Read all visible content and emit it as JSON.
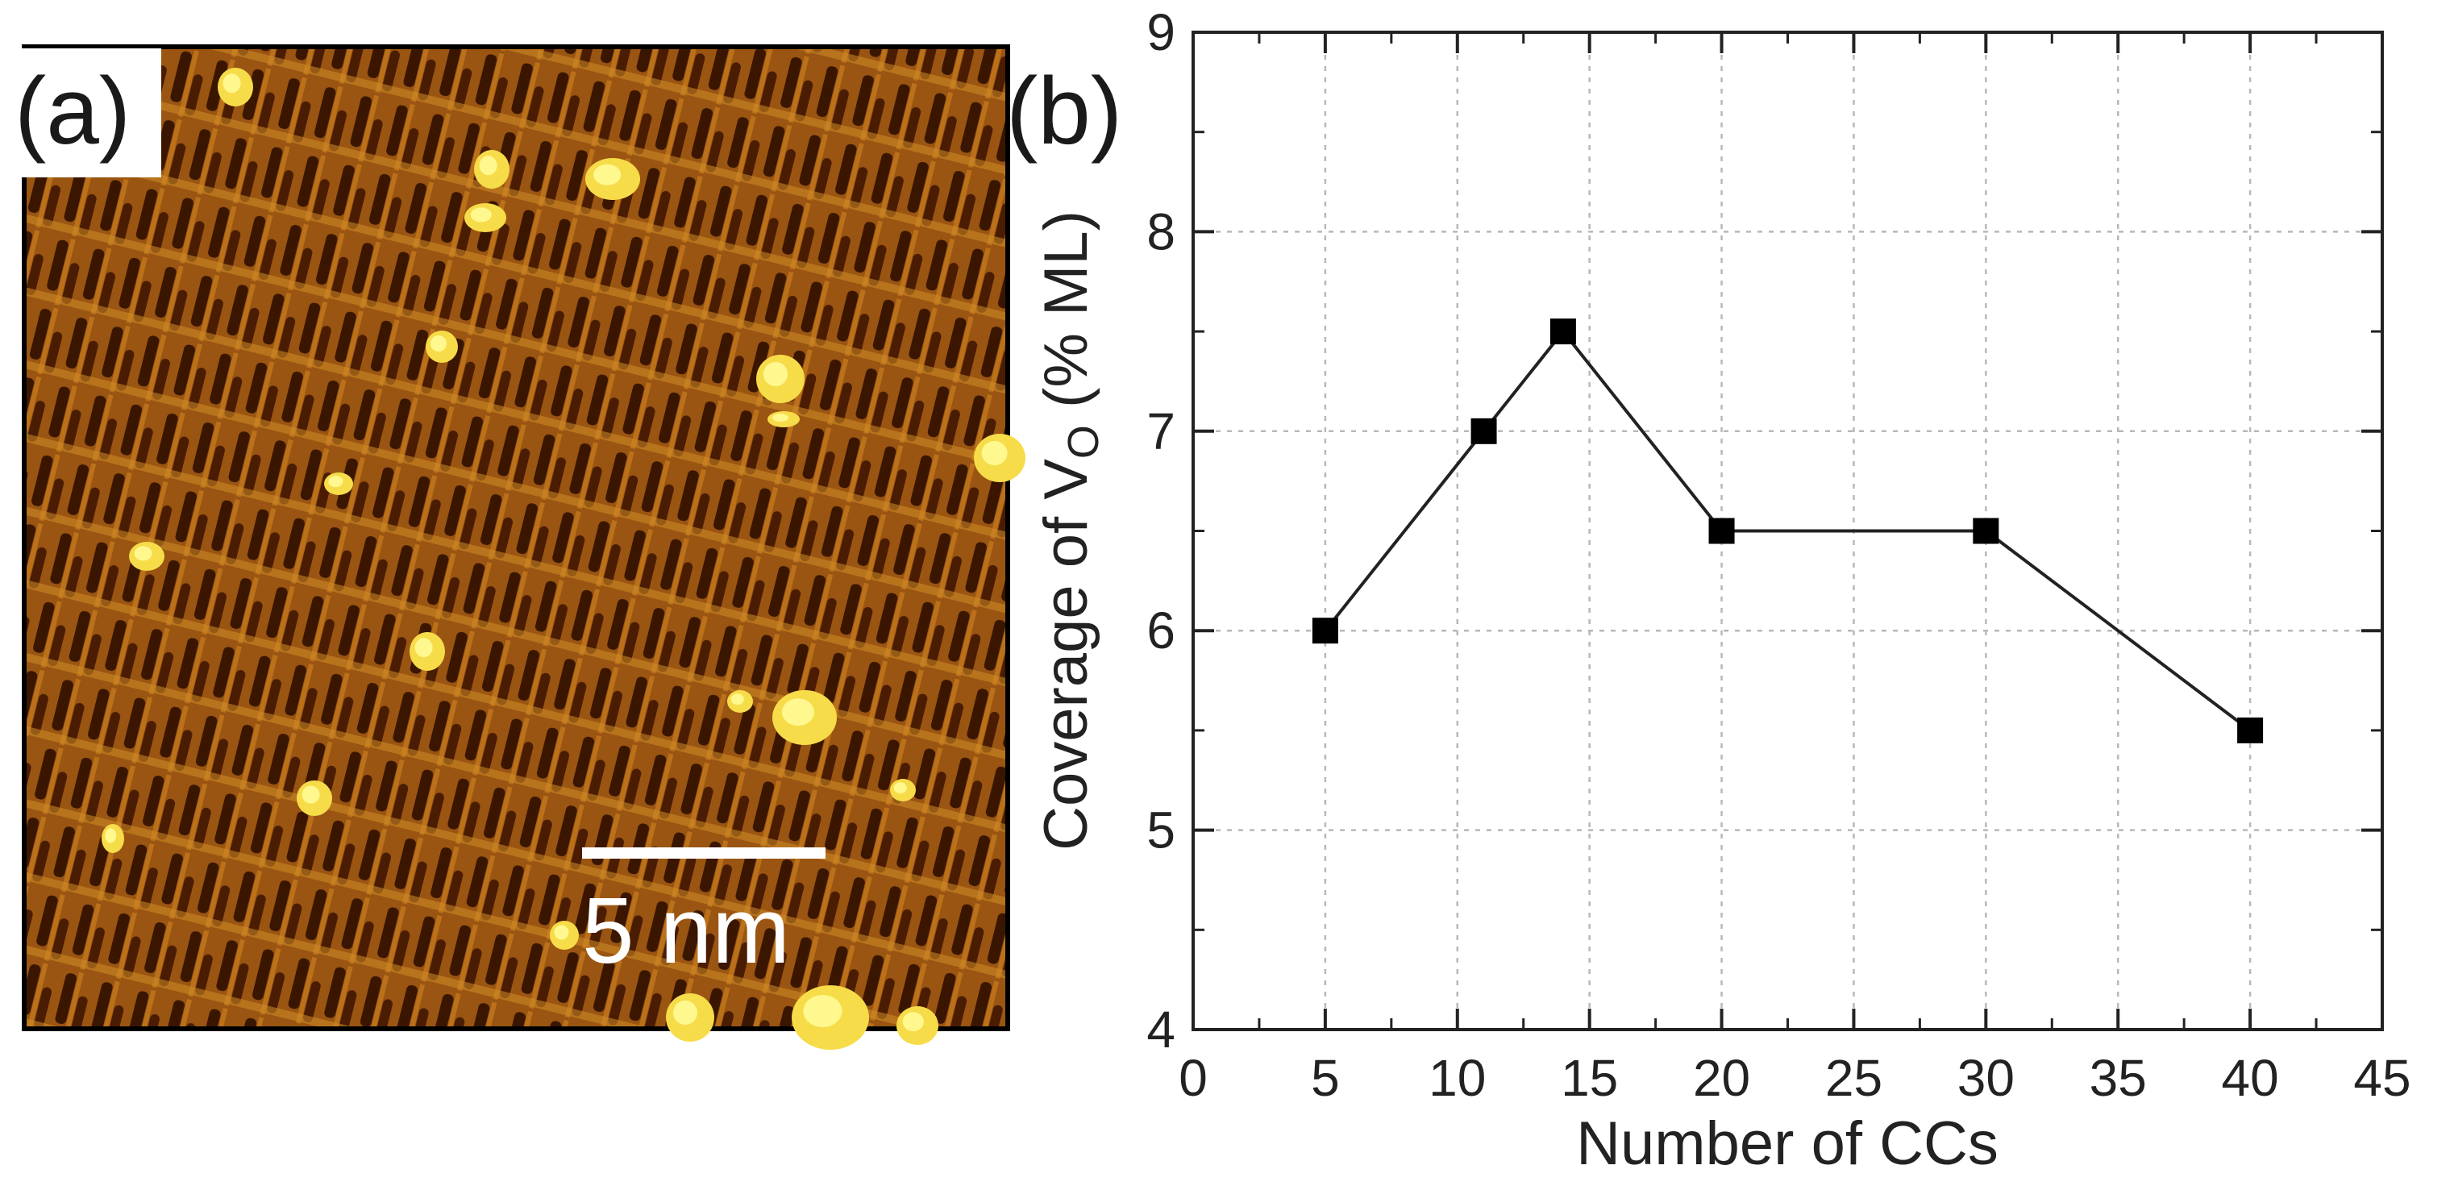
{
  "panel_a": {
    "label": "(a)",
    "scale_bar_label": "5 nm",
    "colors": {
      "background": "#8a4a10",
      "dark": "#3a1600",
      "bright": "#f7dc4a",
      "highlight": "#ffffa0"
    }
  },
  "panel_b": {
    "label": "(b)",
    "ylabel_main": "Coverage of V",
    "ylabel_sub": "O",
    "ylabel_unit": " (% ML)"
  },
  "chart_data": {
    "type": "line",
    "title": "",
    "xlabel": "Number of CCs",
    "ylabel": "Coverage of VO (% ML)",
    "xlim": [
      0,
      45
    ],
    "ylim": [
      4,
      9
    ],
    "xticks": [
      0,
      5,
      10,
      15,
      20,
      25,
      30,
      35,
      40,
      45
    ],
    "yticks": [
      4,
      5,
      6,
      7,
      8,
      9
    ],
    "xtick_labels": [
      "0",
      "5",
      "10",
      "15",
      "20",
      "25",
      "30",
      "35",
      "40",
      "45"
    ],
    "ytick_labels": [
      "4",
      "5",
      "6",
      "7",
      "8",
      "9"
    ],
    "grid": true,
    "marker": "square",
    "series": [
      {
        "name": "Coverage of VO",
        "x": [
          5,
          11,
          14,
          20,
          30,
          40
        ],
        "y": [
          6.0,
          7.0,
          7.5,
          6.5,
          6.5,
          5.5
        ]
      }
    ]
  }
}
